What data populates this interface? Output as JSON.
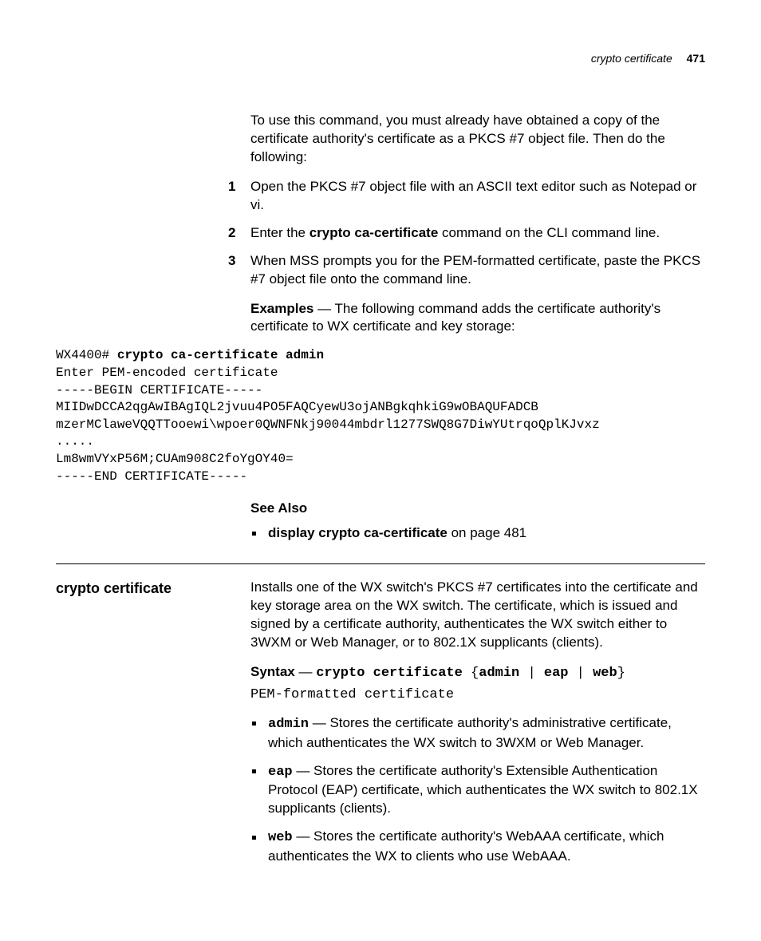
{
  "header": {
    "running_title": "crypto certificate",
    "page_number": "471"
  },
  "intro_para": "To use this command, you must already have obtained a copy of the certificate authority's certificate as a PKCS #7 object file. Then do the following:",
  "steps": {
    "s1": "Open the PKCS #7 object file with an ASCII text editor such as Notepad or vi.",
    "s2_pre": "Enter the ",
    "s2_bold": "crypto ca-certificate",
    "s2_post": " command on the CLI command line.",
    "s3": "When MSS prompts you for the PEM-formatted certificate, paste the PKCS #7 object file onto the command line."
  },
  "examples": {
    "lead_bold": "Examples",
    "lead_rest": " — The following command adds the certificate authority's certificate to WX certificate and key storage:"
  },
  "code": {
    "l1a": "WX4400# ",
    "l1b": "crypto ca-certificate admin",
    "l2": "Enter PEM-encoded certificate",
    "l3": "-----BEGIN CERTIFICATE-----",
    "l4": "MIIDwDCCA2qgAwIBAgIQL2jvuu4PO5FAQCyewU3ojANBgkqhkiG9wOBAQUFADCB",
    "l5": "mzerMClaweVQQTTooewi\\wpoer0QWNFNkj90044mbdrl1277SWQ8G7DiwYUtrqoQplKJvxz",
    "l6": ".....",
    "l7": "Lm8wmVYxP56M;CUAm908C2foYgOY40=",
    "l8": "-----END CERTIFICATE-----"
  },
  "see_also": {
    "heading": "See Also",
    "item_bold": "display crypto ca-certificate",
    "item_rest": " on page 481"
  },
  "section2": {
    "label": "crypto certificate",
    "desc": "Installs one of the WX switch's PKCS #7 certificates into the certificate and key storage area on the WX switch. The certificate, which is issued and signed by a certificate authority, authenticates the WX switch either to 3WXM or Web Manager, or to 802.1X supplicants (clients).",
    "syntax": {
      "lead": "Syntax",
      "dash": " — ",
      "cmd": "crypto certificate ",
      "brace_open": " {",
      "opt1": "admin",
      "sep1": " | ",
      "opt2": "eap",
      "sep2": " | ",
      "opt3": "web",
      "brace_close": "}",
      "sub": "PEM-formatted certificate"
    },
    "params": {
      "p1_kw": "admin",
      "p1_rest": " — Stores the certificate authority's administrative certificate, which authenticates the WX switch to 3WXM or Web Manager.",
      "p2_kw": "eap",
      "p2_rest": " — Stores the certificate authority's Extensible Authentication Protocol (EAP) certificate, which authenticates the WX switch to 802.1X supplicants (clients).",
      "p3_kw": "web",
      "p3_rest": " — Stores the certificate authority's WebAAA certificate, which authenticates the WX to clients who use WebAAA."
    }
  }
}
